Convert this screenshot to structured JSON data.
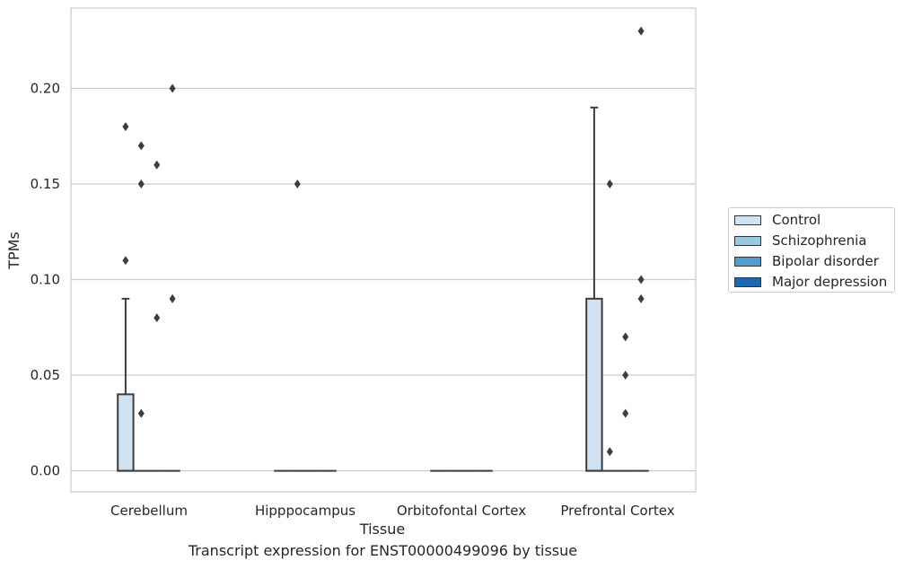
{
  "chart_data": {
    "type": "box",
    "title": "Transcript expression for ENST00000499096 by tissue",
    "xlabel": "Tissue",
    "ylabel": "TPMs",
    "ylim": [
      -0.011,
      0.242
    ],
    "yticks": [
      "0.00",
      "0.05",
      "0.10",
      "0.15",
      "0.20"
    ],
    "grid": "horizontal",
    "legend_position": "right",
    "categories": [
      "Cerebellum",
      "Hipppocampus",
      "Orbitofontal Cortex",
      "Prefrontal Cortex"
    ],
    "series": [
      {
        "name": "Control",
        "color": "#d1e2f2",
        "boxes": [
          {
            "q1": 0.0,
            "median": 0.0,
            "q3": 0.04,
            "whisker_low": 0.0,
            "whisker_high": 0.09,
            "outliers": [
              0.11,
              0.18
            ]
          },
          {
            "q1": 0.0,
            "median": 0.0,
            "q3": 0.0,
            "whisker_low": 0.0,
            "whisker_high": 0.0,
            "outliers": []
          },
          {
            "q1": 0.0,
            "median": 0.0,
            "q3": 0.0,
            "whisker_low": 0.0,
            "whisker_high": 0.0,
            "outliers": []
          },
          {
            "q1": 0.0,
            "median": 0.0,
            "q3": 0.09,
            "whisker_low": 0.0,
            "whisker_high": 0.19,
            "outliers": []
          }
        ]
      },
      {
        "name": "Schizophrenia",
        "color": "#9ac8e0",
        "boxes": [
          {
            "q1": 0.0,
            "median": 0.0,
            "q3": 0.0,
            "whisker_low": 0.0,
            "whisker_high": 0.0,
            "outliers": [
              0.03,
              0.15,
              0.17
            ]
          },
          {
            "q1": 0.0,
            "median": 0.0,
            "q3": 0.0,
            "whisker_low": 0.0,
            "whisker_high": 0.0,
            "outliers": [
              0.15
            ]
          },
          {
            "q1": 0.0,
            "median": 0.0,
            "q3": 0.0,
            "whisker_low": 0.0,
            "whisker_high": 0.0,
            "outliers": []
          },
          {
            "q1": 0.0,
            "median": 0.0,
            "q3": 0.0,
            "whisker_low": 0.0,
            "whisker_high": 0.0,
            "outliers": [
              0.01,
              0.15
            ]
          }
        ]
      },
      {
        "name": "Bipolar disorder",
        "color": "#529dcc",
        "boxes": [
          {
            "q1": 0.0,
            "median": 0.0,
            "q3": 0.0,
            "whisker_low": 0.0,
            "whisker_high": 0.0,
            "outliers": [
              0.08,
              0.16
            ]
          },
          {
            "q1": 0.0,
            "median": 0.0,
            "q3": 0.0,
            "whisker_low": 0.0,
            "whisker_high": 0.0,
            "outliers": []
          },
          {
            "q1": 0.0,
            "median": 0.0,
            "q3": 0.0,
            "whisker_low": 0.0,
            "whisker_high": 0.0,
            "outliers": []
          },
          {
            "q1": 0.0,
            "median": 0.0,
            "q3": 0.0,
            "whisker_low": 0.0,
            "whisker_high": 0.0,
            "outliers": [
              0.03,
              0.05,
              0.07
            ]
          }
        ]
      },
      {
        "name": "Major depression",
        "color": "#1c6aaf",
        "boxes": [
          {
            "q1": 0.0,
            "median": 0.0,
            "q3": 0.0,
            "whisker_low": 0.0,
            "whisker_high": 0.0,
            "outliers": [
              0.09,
              0.2
            ]
          },
          {
            "q1": 0.0,
            "median": 0.0,
            "q3": 0.0,
            "whisker_low": 0.0,
            "whisker_high": 0.0,
            "outliers": []
          },
          {
            "q1": 0.0,
            "median": 0.0,
            "q3": 0.0,
            "whisker_low": 0.0,
            "whisker_high": 0.0,
            "outliers": []
          },
          {
            "q1": 0.0,
            "median": 0.0,
            "q3": 0.0,
            "whisker_low": 0.0,
            "whisker_high": 0.0,
            "outliers": [
              0.09,
              0.1,
              0.23
            ]
          }
        ]
      }
    ]
  }
}
